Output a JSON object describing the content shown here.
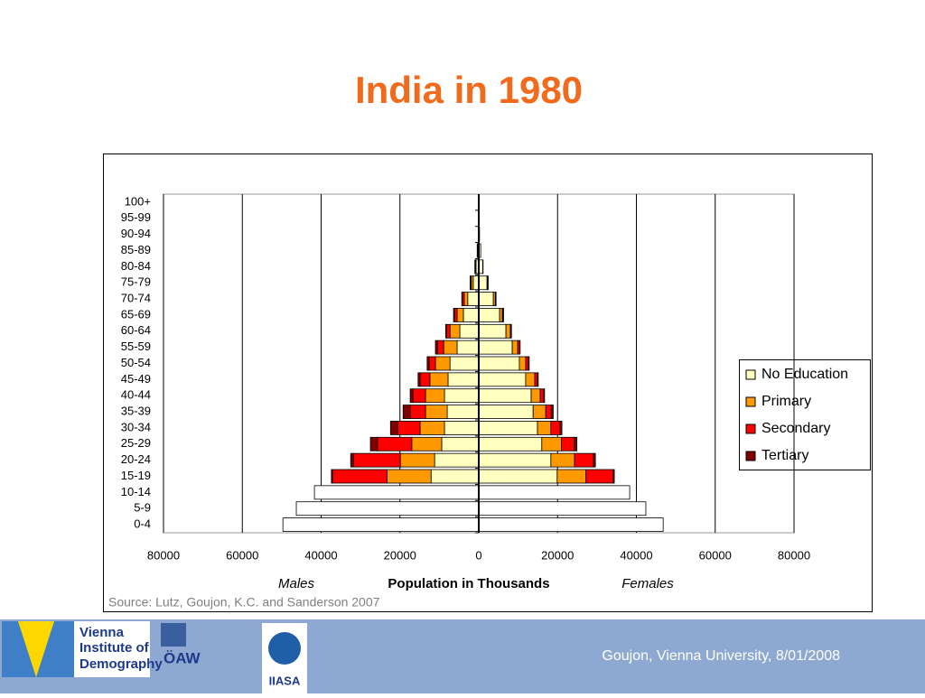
{
  "chart_data": {
    "type": "pyramid",
    "title": "India in 1980",
    "x_label": "Population in Thousands",
    "left_label": "Males",
    "right_label": "Females",
    "source": "Source: Lutz, Goujon, K.C. and Sanderson 2007",
    "categories": [
      "0-4",
      "5-9",
      "10-14",
      "15-19",
      "20-24",
      "25-29",
      "30-34",
      "35-39",
      "40-44",
      "45-49",
      "50-54",
      "55-59",
      "60-64",
      "65-69",
      "70-74",
      "75-79",
      "80-84",
      "85-89",
      "90-94",
      "95-99",
      "100+"
    ],
    "xlim": [
      -80000,
      80000
    ],
    "xticks": [
      {
        "value": -80000,
        "label": "80000"
      },
      {
        "value": -60000,
        "label": "60000"
      },
      {
        "value": -40000,
        "label": "40000"
      },
      {
        "value": -20000,
        "label": "20000"
      },
      0,
      20000,
      40000,
      60000,
      80000
    ],
    "grid": true,
    "legend": "right",
    "series": [
      {
        "color": "#ffffff",
        "males": [
          -49700,
          -46300,
          -41700,
          null,
          null,
          null,
          null,
          null,
          null,
          null,
          null,
          null,
          null,
          null,
          null,
          null,
          null,
          null,
          null,
          null,
          null
        ],
        "females": [
          46800,
          42400,
          38300,
          null,
          null,
          null,
          null,
          null,
          null,
          null,
          null,
          null,
          null,
          null,
          null,
          null,
          null,
          null,
          null,
          null,
          null
        ]
      },
      {
        "name": "No Education",
        "color": "#ffffc0",
        "males": [
          null,
          null,
          null,
          -12100,
          -11200,
          -9400,
          -8700,
          -8000,
          -8700,
          -7800,
          -7300,
          -5500,
          -4800,
          -3900,
          -2800,
          -1400,
          -700,
          -300,
          -100,
          -50,
          0
        ],
        "females": [
          null,
          null,
          null,
          19900,
          18300,
          16000,
          14900,
          13800,
          13300,
          11900,
          10300,
          8500,
          6900,
          5300,
          3700,
          2100,
          1000,
          500,
          200,
          100,
          0
        ]
      },
      {
        "name": "Primary",
        "color": "#ff9900",
        "males": [
          null,
          null,
          null,
          -11200,
          -8700,
          -7600,
          -6200,
          -5500,
          -4800,
          -4600,
          -3700,
          -3400,
          -2500,
          -1600,
          -900,
          -500,
          -200,
          -100,
          0,
          0,
          0
        ],
        "females": [
          null,
          null,
          null,
          7300,
          6000,
          5000,
          3400,
          3200,
          2300,
          2300,
          1600,
          1400,
          1100,
          700,
          500,
          200,
          100,
          0,
          0,
          0,
          0
        ]
      },
      {
        "name": "Secondary",
        "color": "#ff0000",
        "males": [
          null,
          null,
          null,
          -13800,
          -11900,
          -8700,
          -5700,
          -3900,
          -3200,
          -2500,
          -1600,
          -1600,
          -900,
          -700,
          -500,
          -200,
          -100,
          0,
          0,
          0,
          0
        ],
        "females": [
          null,
          null,
          null,
          6900,
          4800,
          3200,
          2300,
          1400,
          900,
          700,
          700,
          500,
          200,
          200,
          100,
          100,
          0,
          0,
          0,
          0,
          0
        ]
      },
      {
        "name": "Tertiary",
        "color": "#800000",
        "males": [
          null,
          null,
          null,
          -300,
          -700,
          -1800,
          -1800,
          -1800,
          -700,
          -500,
          -500,
          -500,
          -200,
          -200,
          -100,
          -100,
          0,
          0,
          0,
          0,
          0
        ],
        "females": [
          null,
          null,
          null,
          300,
          500,
          700,
          500,
          500,
          200,
          200,
          200,
          100,
          100,
          100,
          100,
          0,
          0,
          0,
          0,
          0,
          0
        ]
      }
    ]
  },
  "footer": {
    "logos": [
      "Vienna",
      "Institute of",
      "Demography",
      "ÖAW",
      "IIASA"
    ],
    "credit": "Goujon,  Vienna University, 8/01/2008"
  }
}
